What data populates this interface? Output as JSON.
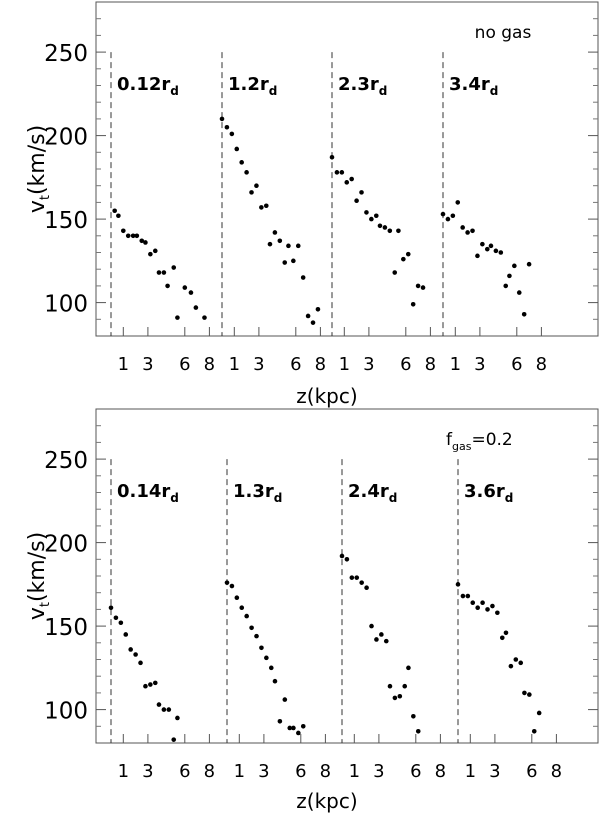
{
  "figure": {
    "ylabel_main": "v",
    "ylabel_sub": "t",
    "ylabel_unit": "(km/s)",
    "xlabel": "z(kpc)"
  },
  "chart_data": [
    {
      "type": "scatter",
      "annotation": "no gas",
      "ylim": [
        80,
        280
      ],
      "yticks": [
        100,
        150,
        200,
        250
      ],
      "xlim_per_panel": [
        0,
        10
      ],
      "xticks": [
        1,
        3,
        6,
        8
      ],
      "grid": false,
      "panels": [
        {
          "label_main": "0.12r",
          "label_sub": "d",
          "points": [
            [
              0.3,
              155
            ],
            [
              0.6,
              152
            ],
            [
              1.0,
              143
            ],
            [
              1.4,
              140
            ],
            [
              1.8,
              140
            ],
            [
              2.1,
              140
            ],
            [
              2.5,
              137
            ],
            [
              2.8,
              136
            ],
            [
              3.2,
              129
            ],
            [
              3.6,
              131
            ],
            [
              3.9,
              118
            ],
            [
              4.3,
              118
            ],
            [
              4.6,
              110
            ],
            [
              5.1,
              121
            ],
            [
              5.4,
              91
            ],
            [
              6.0,
              109
            ],
            [
              6.5,
              106
            ],
            [
              6.9,
              97
            ],
            [
              7.6,
              91
            ]
          ]
        },
        {
          "label_main": "1.2r",
          "label_sub": "d",
          "points": [
            [
              0.0,
              210
            ],
            [
              0.4,
              205
            ],
            [
              0.8,
              201
            ],
            [
              1.2,
              192
            ],
            [
              1.6,
              184
            ],
            [
              2.0,
              178
            ],
            [
              2.4,
              166
            ],
            [
              2.8,
              170
            ],
            [
              3.2,
              157
            ],
            [
              3.6,
              158
            ],
            [
              3.9,
              135
            ],
            [
              4.3,
              142
            ],
            [
              4.7,
              137
            ],
            [
              5.1,
              124
            ],
            [
              5.4,
              134
            ],
            [
              5.8,
              125
            ],
            [
              6.2,
              134
            ],
            [
              6.6,
              115
            ],
            [
              7.0,
              92
            ],
            [
              7.4,
              88
            ],
            [
              7.8,
              96
            ]
          ]
        },
        {
          "label_main": "2.3r",
          "label_sub": "d",
          "points": [
            [
              0.0,
              187
            ],
            [
              0.4,
              178
            ],
            [
              0.8,
              178
            ],
            [
              1.2,
              172
            ],
            [
              1.6,
              174
            ],
            [
              2.0,
              161
            ],
            [
              2.4,
              166
            ],
            [
              2.8,
              154
            ],
            [
              3.2,
              150
            ],
            [
              3.6,
              152
            ],
            [
              3.9,
              146
            ],
            [
              4.3,
              145
            ],
            [
              4.7,
              143
            ],
            [
              5.1,
              118
            ],
            [
              5.4,
              143
            ],
            [
              5.8,
              126
            ],
            [
              6.2,
              129
            ],
            [
              6.6,
              99
            ],
            [
              7.0,
              110
            ],
            [
              7.4,
              109
            ]
          ]
        },
        {
          "label_main": "3.4r",
          "label_sub": "d",
          "points": [
            [
              0.0,
              153
            ],
            [
              0.4,
              150
            ],
            [
              0.8,
              152
            ],
            [
              1.2,
              160
            ],
            [
              1.6,
              145
            ],
            [
              2.0,
              142
            ],
            [
              2.4,
              143
            ],
            [
              2.8,
              128
            ],
            [
              3.2,
              135
            ],
            [
              3.6,
              132
            ],
            [
              3.9,
              134
            ],
            [
              4.3,
              131
            ],
            [
              4.7,
              130
            ],
            [
              5.1,
              110
            ],
            [
              5.4,
              116
            ],
            [
              5.8,
              122
            ],
            [
              6.2,
              106
            ],
            [
              6.6,
              93
            ],
            [
              7.0,
              123
            ]
          ]
        }
      ]
    },
    {
      "type": "scatter",
      "annotation_main": "f",
      "annotation_sub": "gas",
      "annotation_value": "=0.2",
      "ylim": [
        80,
        280
      ],
      "yticks": [
        100,
        150,
        200,
        250
      ],
      "xlim_per_panel": [
        0,
        10
      ],
      "xticks": [
        1,
        3,
        6,
        8
      ],
      "grid": false,
      "panels": [
        {
          "label_main": "0.14r",
          "label_sub": "d",
          "points": [
            [
              0.0,
              161
            ],
            [
              0.4,
              155
            ],
            [
              0.8,
              152
            ],
            [
              1.2,
              145
            ],
            [
              1.6,
              136
            ],
            [
              2.0,
              133
            ],
            [
              2.4,
              128
            ],
            [
              2.8,
              114
            ],
            [
              3.2,
              115
            ],
            [
              3.6,
              116
            ],
            [
              3.9,
              103
            ],
            [
              4.3,
              100
            ],
            [
              4.7,
              100
            ],
            [
              5.1,
              82
            ],
            [
              5.4,
              95
            ]
          ]
        },
        {
          "label_main": "1.3r",
          "label_sub": "d",
          "points": [
            [
              0.0,
              176
            ],
            [
              0.4,
              174
            ],
            [
              0.8,
              167
            ],
            [
              1.2,
              161
            ],
            [
              1.6,
              156
            ],
            [
              2.0,
              149
            ],
            [
              2.4,
              144
            ],
            [
              2.8,
              137
            ],
            [
              3.2,
              131
            ],
            [
              3.6,
              125
            ],
            [
              3.9,
              117
            ],
            [
              4.3,
              93
            ],
            [
              4.7,
              106
            ],
            [
              5.1,
              89
            ],
            [
              5.4,
              89
            ],
            [
              5.8,
              86
            ],
            [
              6.2,
              90
            ]
          ]
        },
        {
          "label_main": "2.4r",
          "label_sub": "d",
          "points": [
            [
              0.0,
              192
            ],
            [
              0.4,
              190
            ],
            [
              0.8,
              179
            ],
            [
              1.2,
              179
            ],
            [
              1.6,
              176
            ],
            [
              2.0,
              173
            ],
            [
              2.4,
              150
            ],
            [
              2.8,
              142
            ],
            [
              3.2,
              145
            ],
            [
              3.6,
              141
            ],
            [
              3.9,
              114
            ],
            [
              4.3,
              107
            ],
            [
              4.7,
              108
            ],
            [
              5.1,
              114
            ],
            [
              5.4,
              125
            ],
            [
              5.8,
              96
            ],
            [
              6.2,
              87
            ]
          ]
        },
        {
          "label_main": "3.6r",
          "label_sub": "d",
          "points": [
            [
              0.0,
              175
            ],
            [
              0.4,
              168
            ],
            [
              0.8,
              168
            ],
            [
              1.2,
              164
            ],
            [
              1.6,
              161
            ],
            [
              2.0,
              164
            ],
            [
              2.4,
              160
            ],
            [
              2.8,
              162
            ],
            [
              3.2,
              158
            ],
            [
              3.6,
              143
            ],
            [
              3.9,
              146
            ],
            [
              4.3,
              126
            ],
            [
              4.7,
              130
            ],
            [
              5.1,
              128
            ],
            [
              5.4,
              110
            ],
            [
              5.8,
              109
            ],
            [
              6.2,
              87
            ],
            [
              6.6,
              98
            ]
          ]
        }
      ]
    }
  ]
}
